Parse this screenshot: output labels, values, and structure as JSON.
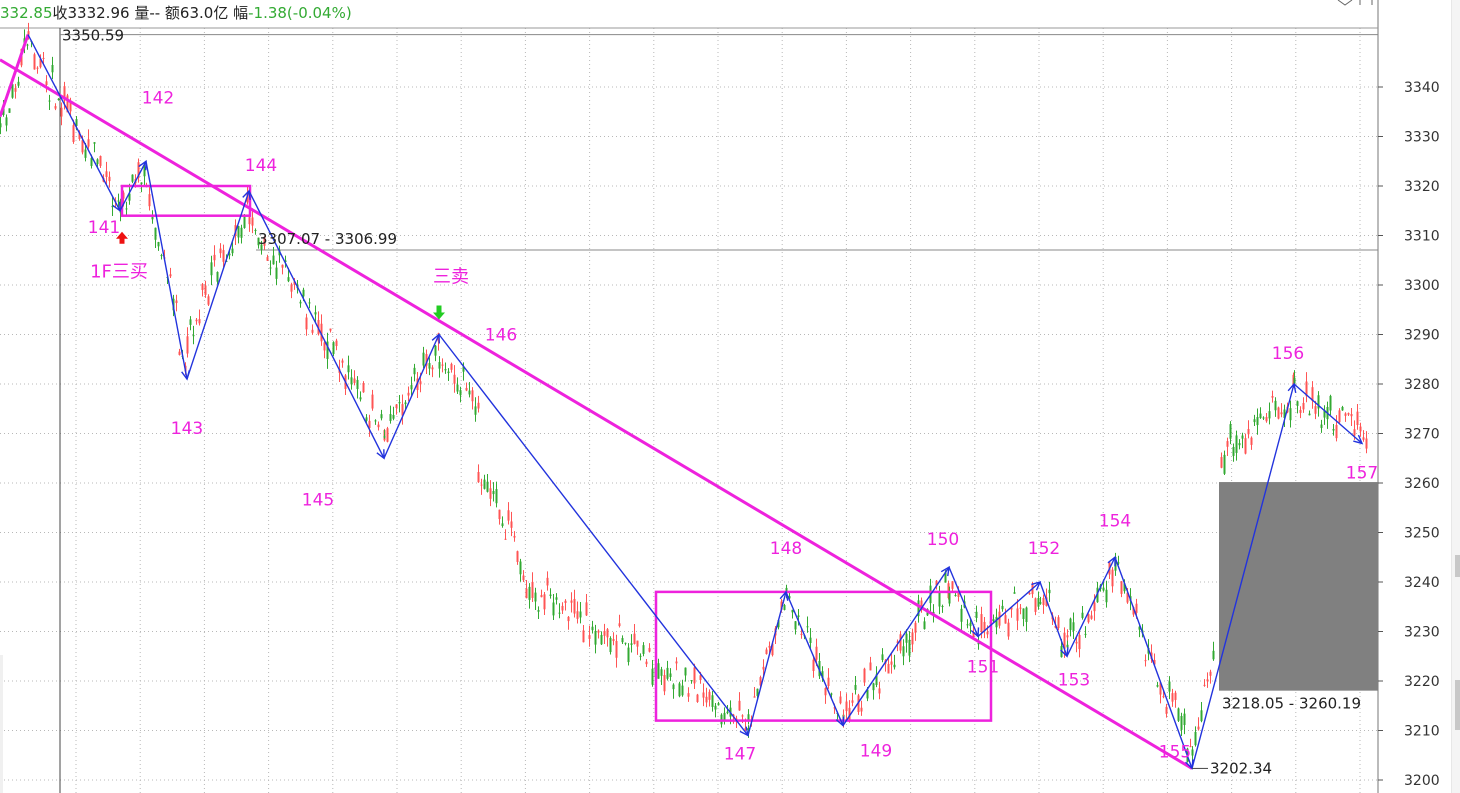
{
  "header": {
    "open_label": "332.85",
    "close_label": "收3332.96",
    "volume_label": "量--",
    "amount_label": "额63.0亿",
    "range_label": "幅",
    "range_value": "-1.38(-0.04%)"
  },
  "chart_data": {
    "type": "candlestick",
    "y_axis": {
      "position": "right",
      "ylim": [
        3197,
        3356
      ],
      "ticks": [
        "3340",
        "3330",
        "3320",
        "3310",
        "3300",
        "3290",
        "3280",
        "3270",
        "3260",
        "3250",
        "3240",
        "3230",
        "3220",
        "3210",
        "3200"
      ]
    },
    "grid": "dotted",
    "colors": {
      "up": "#ff5555",
      "down": "#33aa33",
      "wave": "#2233dd",
      "trend": "#ee22dd",
      "label": "#ee22dd",
      "zone": "#808080"
    },
    "wave_points": [
      {
        "label": "",
        "bar": 28,
        "price": 3350.59
      },
      {
        "label": "141",
        "bar": 120,
        "price": 3315
      },
      {
        "label": "142",
        "bar": 146,
        "price": 3325
      },
      {
        "label": "143",
        "bar": 187,
        "price": 3281
      },
      {
        "label": "144",
        "bar": 249,
        "price": 3319
      },
      {
        "label": "145",
        "bar": 384,
        "price": 3265
      },
      {
        "label": "146",
        "bar": 439,
        "price": 3290
      },
      {
        "label": "147",
        "bar": 748,
        "price": 3209
      },
      {
        "label": "148",
        "bar": 786,
        "price": 3238
      },
      {
        "label": "149",
        "bar": 843,
        "price": 3211
      },
      {
        "label": "150",
        "bar": 949,
        "price": 3243
      },
      {
        "label": "151",
        "bar": 978,
        "price": 3229
      },
      {
        "label": "152",
        "bar": 1040,
        "price": 3240
      },
      {
        "label": "153",
        "bar": 1067,
        "price": 3225
      },
      {
        "label": "154",
        "bar": 1115,
        "price": 3245
      },
      {
        "label": "155",
        "bar": 1192,
        "price": 3202.34
      },
      {
        "label": "156",
        "bar": 1294,
        "price": 3280
      },
      {
        "label": "157",
        "bar": 1362,
        "price": 3268
      }
    ],
    "trend_line": [
      {
        "bar": 0,
        "price": 3345.5
      },
      {
        "bar": 1192,
        "price": 3202.34
      }
    ],
    "boxes": [
      {
        "x0": 122,
        "x1": 250,
        "p_top": 3320,
        "p_bot": 3314
      },
      {
        "x0": 656,
        "x1": 991,
        "p_top": 3238,
        "p_bot": 3212
      }
    ],
    "gray_zone": {
      "x0": 1219,
      "x1": 1378,
      "p_top": 3260.19,
      "p_bot": 3218.05
    },
    "hlines": [
      {
        "price": 3350.59,
        "x0": 60,
        "x1": 1378
      },
      {
        "price": 3307.07,
        "x0": 256,
        "x1": 1378
      }
    ],
    "annotations": [
      {
        "text": "3350.59",
        "bar": 60,
        "price": 3350.59
      },
      {
        "text": "3307.07 - 3306.99",
        "bar": 258,
        "price": 3307.07
      },
      {
        "text": "3218.05 - 3260.19",
        "bar": 1222,
        "price": 3215.5
      },
      {
        "text": "3202.34",
        "bar": 1210,
        "price": 3202.34
      }
    ],
    "signals": [
      {
        "type": "buy",
        "text": "1F三买",
        "bar": 122,
        "price": 3314
      },
      {
        "type": "sell",
        "text": "三卖",
        "bar": 439,
        "price": 3291
      }
    ],
    "segments": [
      {
        "from": 0,
        "to": 28,
        "p0": 3330,
        "p1": 3349
      },
      {
        "from": 28,
        "to": 120,
        "p0": 3349,
        "p1": 3316
      },
      {
        "from": 120,
        "to": 146,
        "p0": 3316,
        "p1": 3324
      },
      {
        "from": 146,
        "to": 187,
        "p0": 3320,
        "p1": 3283
      },
      {
        "from": 187,
        "to": 249,
        "p0": 3290,
        "p1": 3316
      },
      {
        "from": 249,
        "to": 384,
        "p0": 3312,
        "p1": 3270
      },
      {
        "from": 384,
        "to": 439,
        "p0": 3270,
        "p1": 3288
      },
      {
        "from": 439,
        "to": 478,
        "p0": 3285,
        "p1": 3276
      },
      {
        "from": 478,
        "to": 520,
        "p0": 3262,
        "p1": 3245
      },
      {
        "from": 520,
        "to": 748,
        "p0": 3240,
        "p1": 3212
      },
      {
        "from": 748,
        "to": 786,
        "p0": 3212,
        "p1": 3236
      },
      {
        "from": 786,
        "to": 843,
        "p0": 3236,
        "p1": 3213
      },
      {
        "from": 843,
        "to": 949,
        "p0": 3213,
        "p1": 3240
      },
      {
        "from": 949,
        "to": 978,
        "p0": 3240,
        "p1": 3230
      },
      {
        "from": 978,
        "to": 1040,
        "p0": 3230,
        "p1": 3238
      },
      {
        "from": 1040,
        "to": 1067,
        "p0": 3238,
        "p1": 3227
      },
      {
        "from": 1067,
        "to": 1115,
        "p0": 3227,
        "p1": 3243
      },
      {
        "from": 1115,
        "to": 1192,
        "p0": 3243,
        "p1": 3205
      },
      {
        "from": 1192,
        "to": 1213,
        "p0": 3205,
        "p1": 3226
      },
      {
        "from": 1221,
        "to": 1294,
        "p0": 3266,
        "p1": 3278
      },
      {
        "from": 1294,
        "to": 1368,
        "p0": 3278,
        "p1": 3270
      }
    ]
  }
}
